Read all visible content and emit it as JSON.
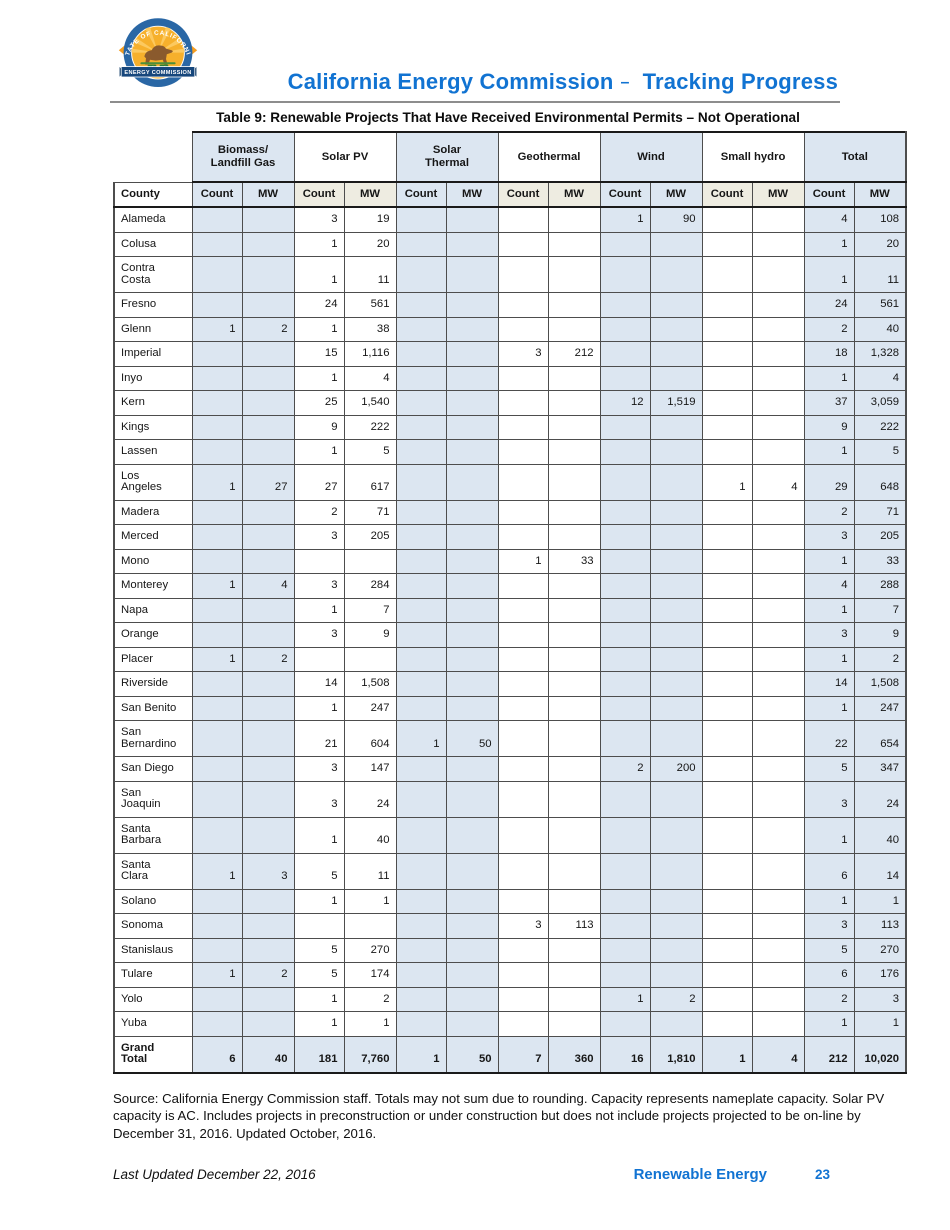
{
  "page": {
    "header": {
      "title": "California Energy Commission",
      "dash": "–",
      "subtitle": "Tracking Progress",
      "logo": {
        "ring_text": "STATE OF CALIFORNIA",
        "banner_text": "ENERGY COMMISSION"
      }
    },
    "table_title": "Table 9: Renewable Projects That Have Received Environmental Permits – Not Operational",
    "source_note": "Source: California Energy Commission staff. Totals may not sum due to rounding. Capacity represents nameplate capacity. Solar PV capacity is AC. Includes projects in preconstruction or under construction but does not include projects projected to be on-line by December 31, 2016. Updated October, 2016.",
    "footer": {
      "last_updated": "Last Updated December 22, 2016",
      "section": "Renewable Energy",
      "page_number": "23"
    }
  },
  "colors": {
    "title_blue": "#1173d2",
    "cell_blue": "#dce6f1",
    "cell_cream": "#eeece1",
    "logo_ring_blue": "#2a67a5",
    "logo_banner_blue": "#17477c",
    "logo_gold": "#f6b02c",
    "logo_orange": "#f59d20"
  },
  "table": {
    "county_header": "County",
    "sub_headers": [
      "Count",
      "MW"
    ],
    "groups": [
      {
        "label": "Biomass/\nLandfill Gas",
        "shaded": true
      },
      {
        "label": "Solar PV",
        "shaded": false
      },
      {
        "label": "Solar\nThermal",
        "shaded": true
      },
      {
        "label": "Geothermal",
        "shaded": false
      },
      {
        "label": "Wind",
        "shaded": true
      },
      {
        "label": "Small hydro",
        "shaded": false
      },
      {
        "label": "Total",
        "shaded": true
      }
    ],
    "rows": [
      {
        "county": "Alameda",
        "values": [
          "",
          "",
          "3",
          "19",
          "",
          "",
          "",
          "",
          "1",
          "90",
          "",
          "",
          "4",
          "108"
        ]
      },
      {
        "county": "Colusa",
        "values": [
          "",
          "",
          "1",
          "20",
          "",
          "",
          "",
          "",
          "",
          "",
          "",
          "",
          "1",
          "20"
        ]
      },
      {
        "county": "Contra\nCosta",
        "values": [
          "",
          "",
          "1",
          "11",
          "",
          "",
          "",
          "",
          "",
          "",
          "",
          "",
          "1",
          "11"
        ]
      },
      {
        "county": "Fresno",
        "values": [
          "",
          "",
          "24",
          "561",
          "",
          "",
          "",
          "",
          "",
          "",
          "",
          "",
          "24",
          "561"
        ]
      },
      {
        "county": "Glenn",
        "values": [
          "1",
          "2",
          "1",
          "38",
          "",
          "",
          "",
          "",
          "",
          "",
          "",
          "",
          "2",
          "40"
        ]
      },
      {
        "county": "Imperial",
        "values": [
          "",
          "",
          "15",
          "1,116",
          "",
          "",
          "3",
          "212",
          "",
          "",
          "",
          "",
          "18",
          "1,328"
        ]
      },
      {
        "county": "Inyo",
        "values": [
          "",
          "",
          "1",
          "4",
          "",
          "",
          "",
          "",
          "",
          "",
          "",
          "",
          "1",
          "4"
        ]
      },
      {
        "county": "Kern",
        "values": [
          "",
          "",
          "25",
          "1,540",
          "",
          "",
          "",
          "",
          "12",
          "1,519",
          "",
          "",
          "37",
          "3,059"
        ]
      },
      {
        "county": "Kings",
        "values": [
          "",
          "",
          "9",
          "222",
          "",
          "",
          "",
          "",
          "",
          "",
          "",
          "",
          "9",
          "222"
        ]
      },
      {
        "county": "Lassen",
        "values": [
          "",
          "",
          "1",
          "5",
          "",
          "",
          "",
          "",
          "",
          "",
          "",
          "",
          "1",
          "5"
        ]
      },
      {
        "county": "Los\nAngeles",
        "values": [
          "1",
          "27",
          "27",
          "617",
          "",
          "",
          "",
          "",
          "",
          "",
          "1",
          "4",
          "29",
          "648"
        ]
      },
      {
        "county": "Madera",
        "values": [
          "",
          "",
          "2",
          "71",
          "",
          "",
          "",
          "",
          "",
          "",
          "",
          "",
          "2",
          "71"
        ]
      },
      {
        "county": "Merced",
        "values": [
          "",
          "",
          "3",
          "205",
          "",
          "",
          "",
          "",
          "",
          "",
          "",
          "",
          "3",
          "205"
        ]
      },
      {
        "county": "Mono",
        "values": [
          "",
          "",
          "",
          "",
          "",
          "",
          "1",
          "33",
          "",
          "",
          "",
          "",
          "1",
          "33"
        ]
      },
      {
        "county": "Monterey",
        "values": [
          "1",
          "4",
          "3",
          "284",
          "",
          "",
          "",
          "",
          "",
          "",
          "",
          "",
          "4",
          "288"
        ]
      },
      {
        "county": "Napa",
        "values": [
          "",
          "",
          "1",
          "7",
          "",
          "",
          "",
          "",
          "",
          "",
          "",
          "",
          "1",
          "7"
        ]
      },
      {
        "county": "Orange",
        "values": [
          "",
          "",
          "3",
          "9",
          "",
          "",
          "",
          "",
          "",
          "",
          "",
          "",
          "3",
          "9"
        ]
      },
      {
        "county": "Placer",
        "values": [
          "1",
          "2",
          "",
          "",
          "",
          "",
          "",
          "",
          "",
          "",
          "",
          "",
          "1",
          "2"
        ]
      },
      {
        "county": "Riverside",
        "values": [
          "",
          "",
          "14",
          "1,508",
          "",
          "",
          "",
          "",
          "",
          "",
          "",
          "",
          "14",
          "1,508"
        ]
      },
      {
        "county": "San Benito",
        "values": [
          "",
          "",
          "1",
          "247",
          "",
          "",
          "",
          "",
          "",
          "",
          "",
          "",
          "1",
          "247"
        ]
      },
      {
        "county": "San\nBernardino",
        "values": [
          "",
          "",
          "21",
          "604",
          "1",
          "50",
          "",
          "",
          "",
          "",
          "",
          "",
          "22",
          "654"
        ]
      },
      {
        "county": "San Diego",
        "values": [
          "",
          "",
          "3",
          "147",
          "",
          "",
          "",
          "",
          "2",
          "200",
          "",
          "",
          "5",
          "347"
        ]
      },
      {
        "county": "San\nJoaquin",
        "values": [
          "",
          "",
          "3",
          "24",
          "",
          "",
          "",
          "",
          "",
          "",
          "",
          "",
          "3",
          "24"
        ]
      },
      {
        "county": "Santa\nBarbara",
        "values": [
          "",
          "",
          "1",
          "40",
          "",
          "",
          "",
          "",
          "",
          "",
          "",
          "",
          "1",
          "40"
        ]
      },
      {
        "county": "Santa\nClara",
        "values": [
          "1",
          "3",
          "5",
          "11",
          "",
          "",
          "",
          "",
          "",
          "",
          "",
          "",
          "6",
          "14"
        ]
      },
      {
        "county": "Solano",
        "values": [
          "",
          "",
          "1",
          "1",
          "",
          "",
          "",
          "",
          "",
          "",
          "",
          "",
          "1",
          "1"
        ]
      },
      {
        "county": "Sonoma",
        "values": [
          "",
          "",
          "",
          "",
          "",
          "",
          "3",
          "113",
          "",
          "",
          "",
          "",
          "3",
          "113"
        ]
      },
      {
        "county": "Stanislaus",
        "values": [
          "",
          "",
          "5",
          "270",
          "",
          "",
          "",
          "",
          "",
          "",
          "",
          "",
          "5",
          "270"
        ]
      },
      {
        "county": "Tulare",
        "values": [
          "1",
          "2",
          "5",
          "174",
          "",
          "",
          "",
          "",
          "",
          "",
          "",
          "",
          "6",
          "176"
        ]
      },
      {
        "county": "Yolo",
        "values": [
          "",
          "",
          "1",
          "2",
          "",
          "",
          "",
          "",
          "1",
          "2",
          "",
          "",
          "2",
          "3"
        ]
      },
      {
        "county": "Yuba",
        "values": [
          "",
          "",
          "1",
          "1",
          "",
          "",
          "",
          "",
          "",
          "",
          "",
          "",
          "1",
          "1"
        ]
      }
    ],
    "grand_total": {
      "county": "Grand\nTotal",
      "values": [
        "6",
        "40",
        "181",
        "7,760",
        "1",
        "50",
        "7",
        "360",
        "16",
        "1,810",
        "1",
        "4",
        "212",
        "10,020"
      ]
    }
  }
}
